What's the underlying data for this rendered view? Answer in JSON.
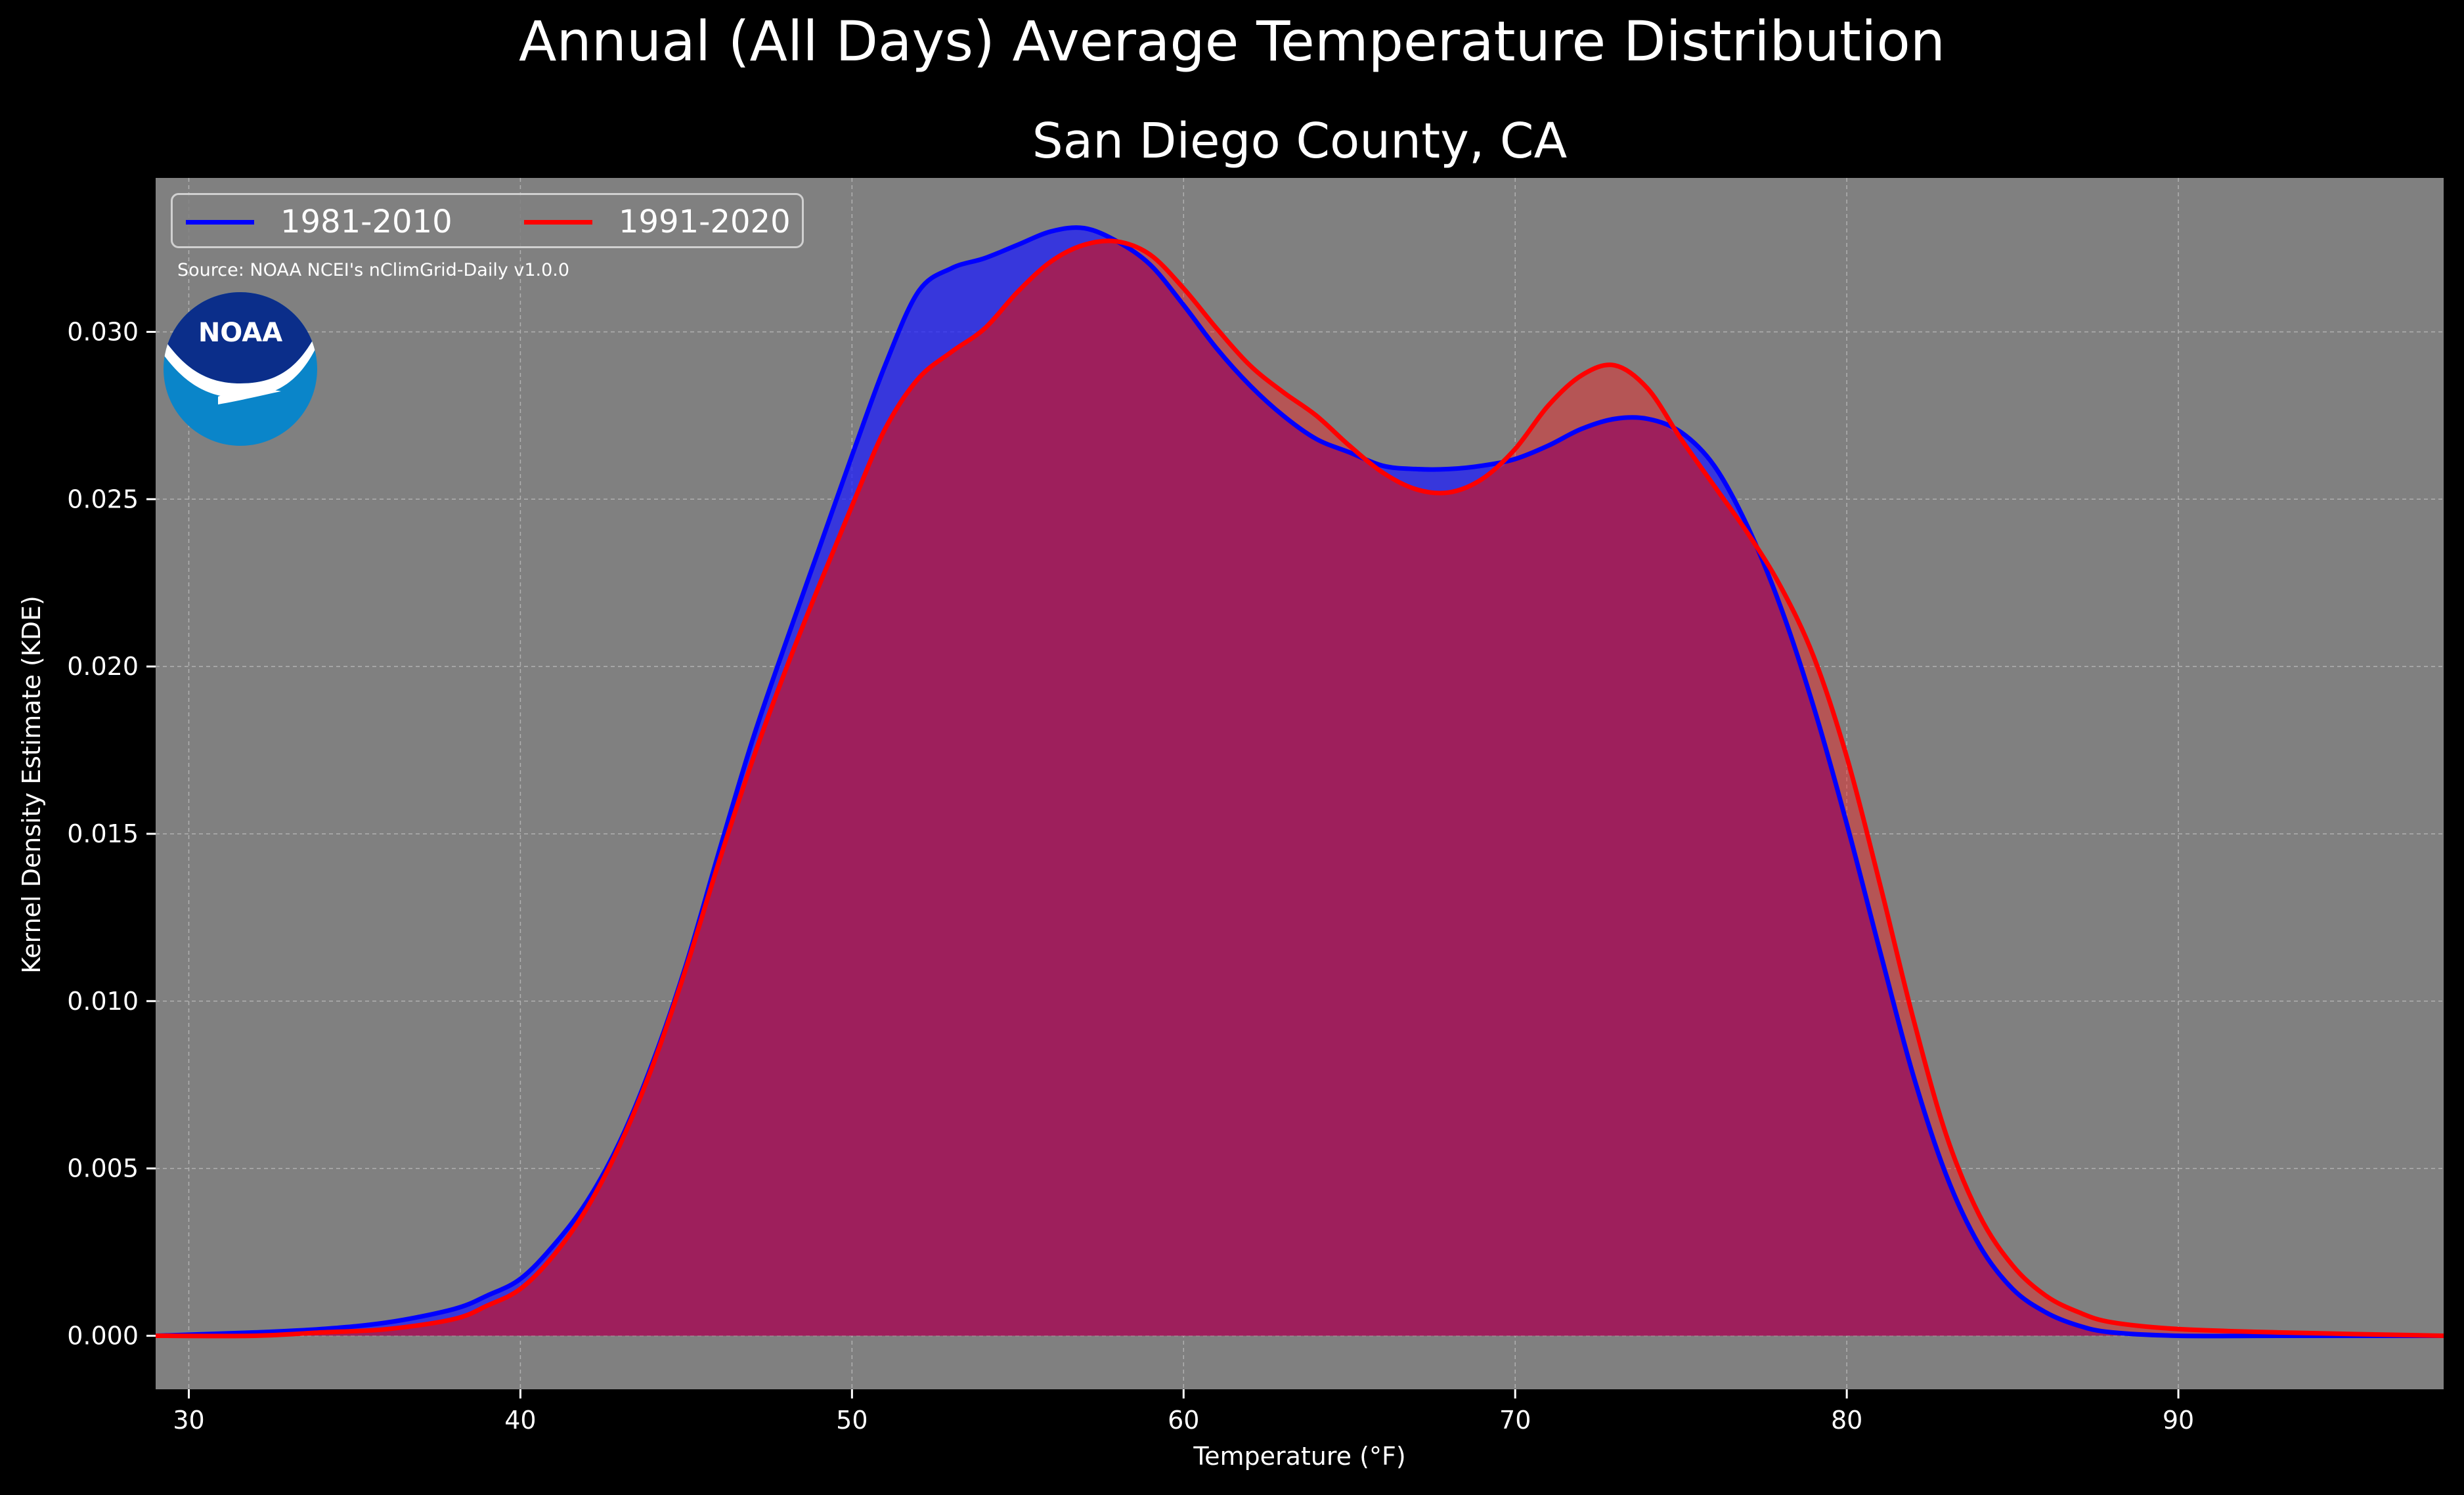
{
  "title": "Annual (All Days) Average Temperature Distribution",
  "subtitle": "San Diego County, CA",
  "source": "Source: NOAA NCEI's nClimGrid-Daily v1.0.0",
  "logo_text": "NOAA",
  "colors": {
    "background": "#000000",
    "plot_bg": "#808080",
    "series1": "#0000ff",
    "series2": "#ff0000",
    "overlap": "#9e1f5c"
  },
  "chart_data": {
    "type": "area",
    "xlabel": "Temperature (°F)",
    "ylabel": "Kernel Density Estimate (KDE)",
    "xlim": [
      29,
      98
    ],
    "ylim": [
      -0.0016,
      0.0346
    ],
    "xticks": [
      30,
      40,
      50,
      60,
      70,
      80,
      90
    ],
    "yticks": [
      0.0,
      0.005,
      0.01,
      0.015,
      0.02,
      0.025,
      0.03
    ],
    "ytick_labels": [
      "0.000",
      "0.005",
      "0.010",
      "0.015",
      "0.020",
      "0.025",
      "0.030"
    ],
    "grid": true,
    "legend_position": "top-left",
    "series": [
      {
        "name": "1981-2010",
        "color": "#0000ff",
        "x": [
          29,
          32,
          34,
          36,
          38,
          39,
          40,
          41,
          42,
          43,
          44,
          45,
          46,
          47,
          48,
          49,
          50,
          51,
          52,
          53,
          54,
          55,
          56,
          57,
          58,
          59,
          60,
          61,
          62,
          63,
          64,
          65,
          66,
          67,
          68,
          69,
          70,
          71,
          72,
          73,
          74,
          75,
          76,
          77,
          78,
          79,
          80,
          81,
          82,
          83,
          84,
          85,
          86,
          87,
          88,
          90,
          93,
          98
        ],
        "y": [
          0.0,
          0.0001,
          0.0002,
          0.0004,
          0.0008,
          0.0012,
          0.0017,
          0.0027,
          0.004,
          0.0058,
          0.0082,
          0.0111,
          0.0145,
          0.0178,
          0.0207,
          0.0235,
          0.0263,
          0.029,
          0.0312,
          0.0319,
          0.0322,
          0.0326,
          0.033,
          0.0331,
          0.0327,
          0.032,
          0.0308,
          0.0295,
          0.0284,
          0.0275,
          0.0268,
          0.0264,
          0.026,
          0.0259,
          0.0259,
          0.026,
          0.0262,
          0.0266,
          0.0271,
          0.0274,
          0.0274,
          0.027,
          0.026,
          0.0242,
          0.0218,
          0.0188,
          0.0153,
          0.0115,
          0.0078,
          0.0048,
          0.0027,
          0.0014,
          0.0007,
          0.0003,
          0.0001,
          0.0,
          0.0,
          0.0
        ]
      },
      {
        "name": "1991-2020",
        "color": "#ff0000",
        "x": [
          29,
          32,
          34,
          36,
          38,
          39,
          40,
          41,
          42,
          43,
          44,
          45,
          46,
          47,
          48,
          49,
          50,
          51,
          52,
          53,
          54,
          55,
          56,
          57,
          58,
          59,
          60,
          61,
          62,
          63,
          64,
          65,
          66,
          67,
          68,
          69,
          70,
          71,
          72,
          73,
          74,
          75,
          76,
          77,
          78,
          79,
          80,
          81,
          82,
          83,
          84,
          85,
          86,
          87,
          88,
          90,
          93,
          98
        ],
        "y": [
          0.0,
          0.0,
          0.0001,
          0.0002,
          0.0005,
          0.0009,
          0.0014,
          0.0024,
          0.0038,
          0.0057,
          0.0081,
          0.011,
          0.0142,
          0.0172,
          0.0199,
          0.0224,
          0.0248,
          0.0271,
          0.0286,
          0.0294,
          0.0301,
          0.0312,
          0.0321,
          0.0326,
          0.0327,
          0.0323,
          0.0313,
          0.0301,
          0.029,
          0.0282,
          0.0275,
          0.0266,
          0.0258,
          0.0253,
          0.0252,
          0.0256,
          0.0265,
          0.0278,
          0.0287,
          0.029,
          0.0283,
          0.0268,
          0.0254,
          0.024,
          0.0224,
          0.0203,
          0.0173,
          0.0135,
          0.0095,
          0.006,
          0.0036,
          0.0021,
          0.0012,
          0.0007,
          0.0004,
          0.0002,
          0.0001,
          0.0
        ]
      }
    ]
  }
}
